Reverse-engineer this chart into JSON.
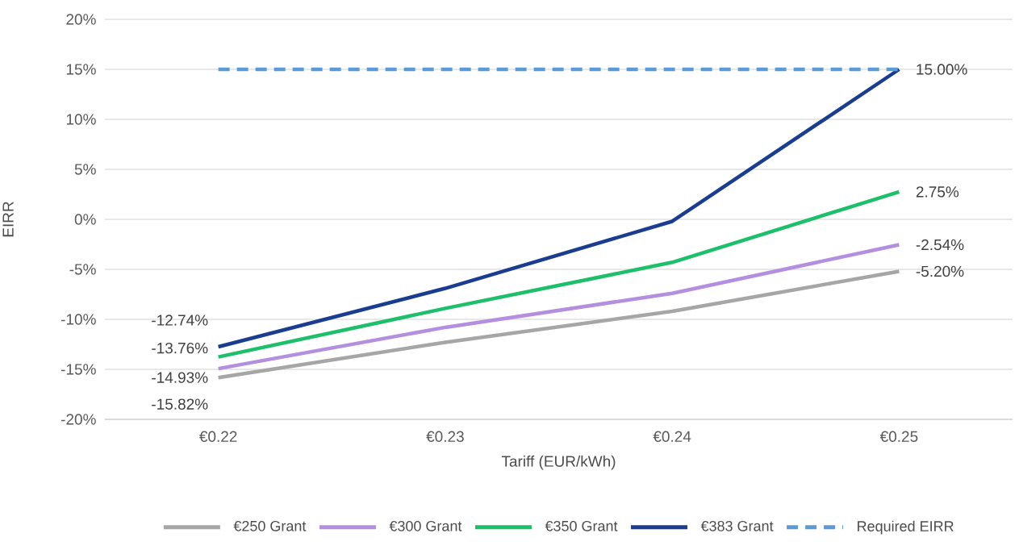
{
  "chart_data": {
    "type": "line",
    "xlabel": "Tariff (EUR/kWh)",
    "ylabel": "EIRR",
    "categories": [
      "€0.22",
      "€0.23",
      "€0.24",
      "€0.25"
    ],
    "ylim": [
      -20,
      20
    ],
    "yticks": [
      {
        "value": -20,
        "label": "-20%"
      },
      {
        "value": -15,
        "label": "-15%"
      },
      {
        "value": -10,
        "label": "-10%"
      },
      {
        "value": -5,
        "label": "-5%"
      },
      {
        "value": 0,
        "label": "0%"
      },
      {
        "value": 5,
        "label": "5%"
      },
      {
        "value": 10,
        "label": "10%"
      },
      {
        "value": 15,
        "label": "15%"
      },
      {
        "value": 20,
        "label": "20%"
      }
    ],
    "grid": "y",
    "legend": "bottom",
    "series": [
      {
        "name": "€250 Grant",
        "color": "#a6a6a6",
        "values": [
          -15.82,
          -12.3,
          -9.2,
          -5.2
        ],
        "value_labels": [
          "-15.82%",
          null,
          null,
          "-5.20%"
        ]
      },
      {
        "name": "€300 Grant",
        "color": "#b48fe0",
        "values": [
          -14.93,
          -10.8,
          -7.4,
          -2.54
        ],
        "value_labels": [
          "-14.93%",
          null,
          null,
          "-2.54%"
        ]
      },
      {
        "name": "€350 Grant",
        "color": "#1dbf6a",
        "values": [
          -13.76,
          -8.9,
          -4.3,
          2.75
        ],
        "value_labels": [
          "-13.76%",
          null,
          null,
          "2.75%"
        ]
      },
      {
        "name": "€383 Grant",
        "color": "#1a3d8f",
        "values": [
          -12.74,
          -6.9,
          -0.2,
          15.0
        ],
        "value_labels": [
          "-12.74%",
          null,
          null,
          "15.00%"
        ]
      },
      {
        "name": "Required EIRR",
        "color": "#5b9bd5",
        "values": [
          15,
          15,
          15,
          15
        ],
        "line_style": "dashed"
      }
    ]
  }
}
